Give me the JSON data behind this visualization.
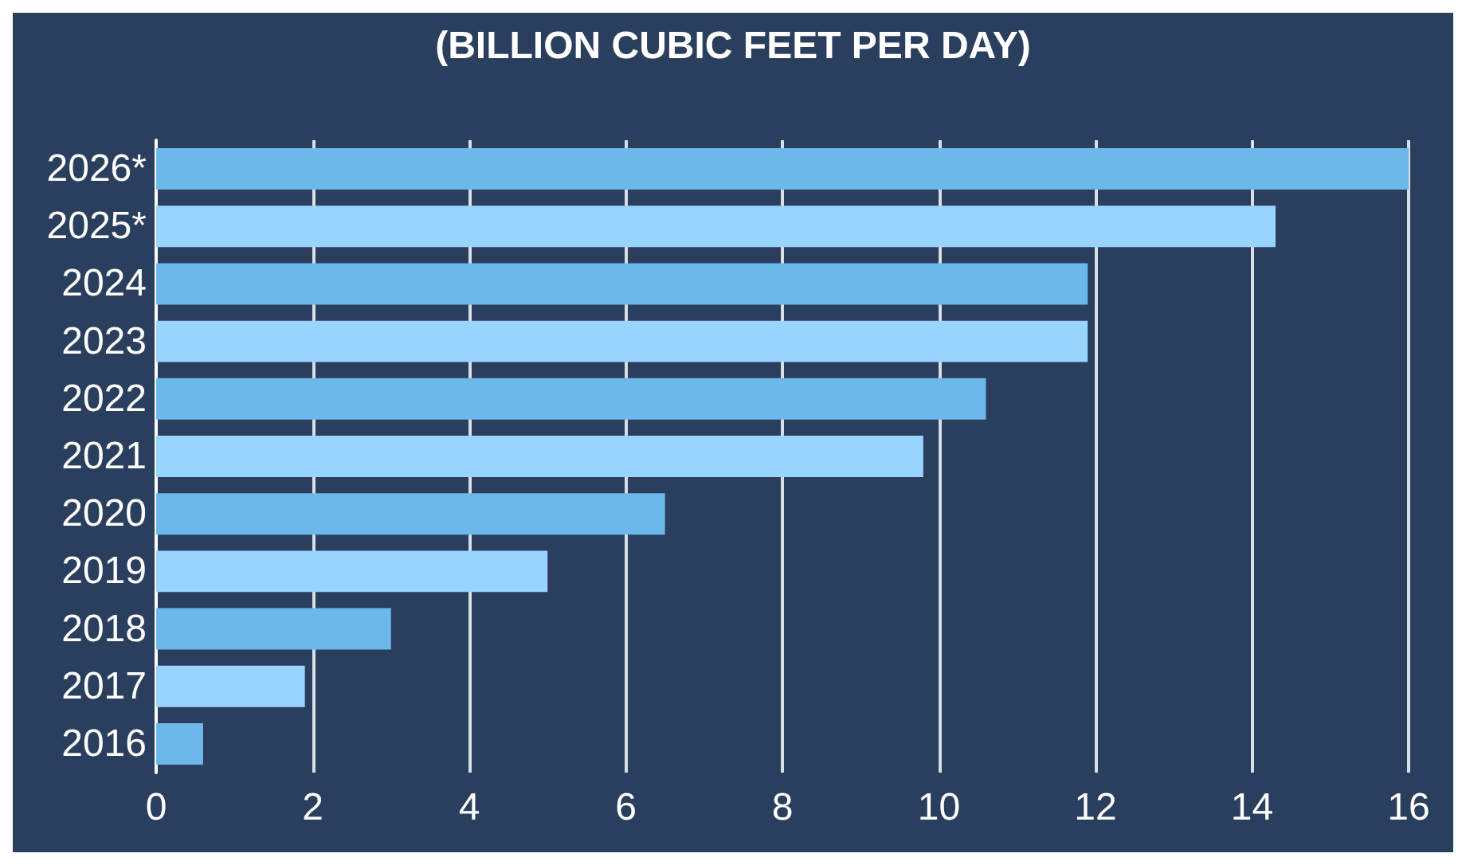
{
  "chart_data": {
    "type": "bar",
    "orientation": "horizontal",
    "title": "(BILLION CUBIC FEET PER DAY)",
    "categories": [
      "2026*",
      "2025*",
      "2024",
      "2023",
      "2022",
      "2021",
      "2020",
      "2019",
      "2018",
      "2017",
      "2016"
    ],
    "values": [
      16.0,
      14.3,
      11.9,
      11.9,
      10.6,
      9.8,
      6.5,
      5.0,
      3.0,
      1.9,
      0.6
    ],
    "colors": [
      "#6cb8ea",
      "#99d3ff",
      "#6cb8ea",
      "#99d3ff",
      "#6cb8ea",
      "#99d3ff",
      "#6cb8ea",
      "#99d3ff",
      "#6cb8ea",
      "#99d3ff",
      "#6cb8ea"
    ],
    "xlim": [
      0,
      16
    ],
    "xticks": [
      0,
      2,
      4,
      6,
      8,
      10,
      12,
      14,
      16
    ],
    "grid": "x"
  }
}
